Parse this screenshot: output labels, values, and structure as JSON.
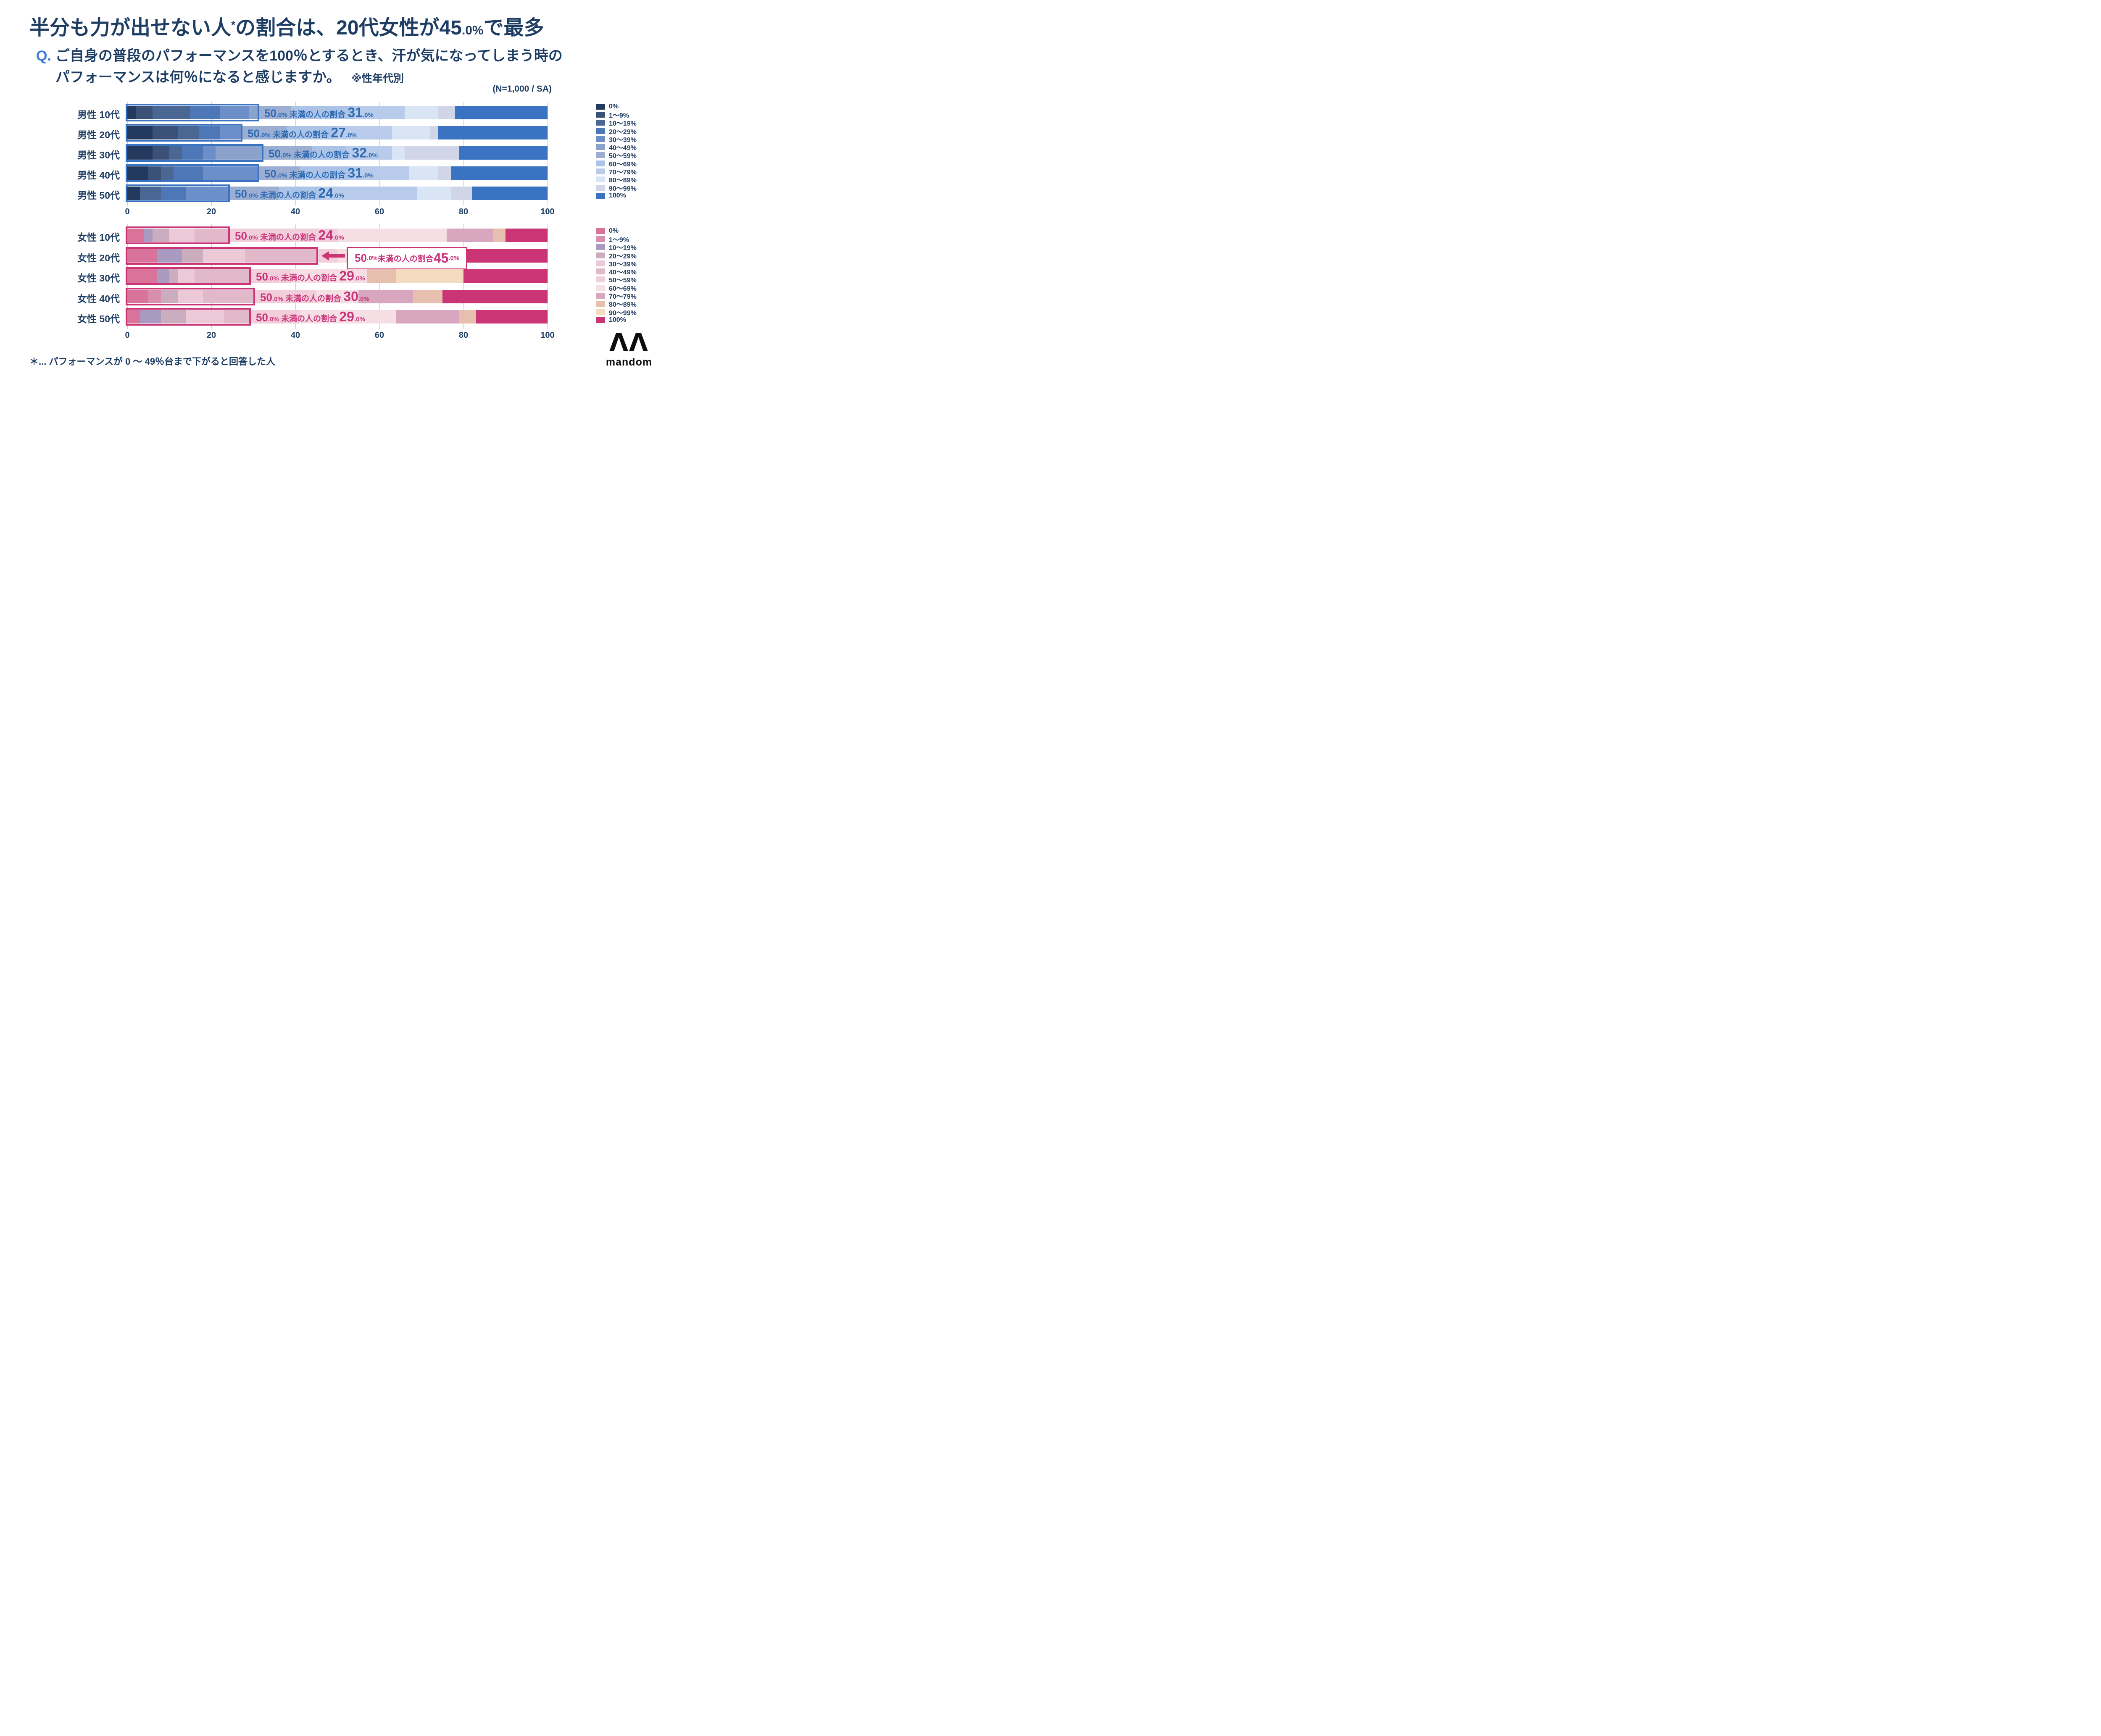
{
  "title": {
    "part1": "半分も力が出せない人",
    "asterisk": "*",
    "part2": "の割合は、20代女性が",
    "value": "45",
    "value_suffix": ".0%",
    "part3": "で最多"
  },
  "question": {
    "q": "Q.",
    "line1": "ご自身の普段のパフォーマンスを100％とするとき、汗が気になってしまう時の",
    "line2": "パフォーマンスは何％になると感じますか。",
    "note": "※性年代別"
  },
  "sample_note": "(N=1,000 / SA)",
  "footnote": "＊... パフォーマンスが 0 〜 49％台まで下がると回答した人",
  "logo": {
    "mark": "ΛΛ",
    "text": "mandom"
  },
  "legend_categories": [
    "0%",
    "1〜9%",
    "10〜19%",
    "20〜29%",
    "30〜39%",
    "40〜49%",
    "50〜59%",
    "60〜69%",
    "70〜79%",
    "80〜89%",
    "90〜99%",
    "100%"
  ],
  "bar_label": {
    "prefix_num": "50",
    "prefix_suffix": ".0%",
    "mid": " 未満の人の割合 ",
    "value_suffix": ".0%"
  },
  "charts": {
    "male": {
      "accent": "#3a73c1",
      "label_color": "#2e6bb4",
      "palette": [
        "#24395e",
        "#3b5177",
        "#4a6793",
        "#4d77b6",
        "#6c8ec9",
        "#8aa2cc",
        "#9cafd3",
        "#abc3e6",
        "#b8cbea",
        "#d9e4f4",
        "#d0d5e8",
        "#3a73c1"
      ]
    },
    "female": {
      "accent": "#cb3475",
      "label_color": "#c9357b",
      "palette": [
        "#d9739a",
        "#d88fae",
        "#a89ac0",
        "#cbadc0",
        "#ecc9d7",
        "#e2b8cb",
        "#f1ced9",
        "#f6dfe4",
        "#d8a6bf",
        "#e6bfae",
        "#f3dcc0",
        "#cb3475"
      ]
    }
  },
  "chart_data": [
    {
      "type": "bar",
      "orientation": "horizontal",
      "stacked": true,
      "group": "male",
      "title": "男性 性年代別 パフォーマンス低下の回答分布",
      "categories": [
        "男性 10代",
        "男性 20代",
        "男性 30代",
        "男性 40代",
        "男性 50代"
      ],
      "segment_labels": [
        "0%",
        "1〜9%",
        "10〜19%",
        "20〜29%",
        "30〜39%",
        "40〜49%",
        "50〜59%",
        "60〜69%",
        "70〜79%",
        "80〜89%",
        "90〜99%",
        "100%"
      ],
      "values": [
        [
          2,
          4,
          9,
          7,
          7,
          2,
          8,
          15,
          12,
          8,
          4,
          22
        ],
        [
          6,
          6,
          5,
          5,
          5,
          0,
          11,
          12,
          13,
          9,
          2,
          26
        ],
        [
          6,
          4,
          3,
          5,
          3,
          11,
          12,
          8,
          11,
          3,
          13,
          21
        ],
        [
          5,
          3,
          3,
          7,
          13,
          0,
          10,
          12,
          14,
          7,
          3,
          23
        ],
        [
          3,
          0,
          5,
          6,
          10,
          0,
          12,
          10,
          23,
          8,
          5,
          18
        ]
      ],
      "under50_share": [
        31,
        27,
        32,
        31,
        24
      ],
      "under50_labels": [
        "50.0% 未満の人の割合 31.0%",
        "50.0% 未満の人の割合 27.0%",
        "50.0% 未満の人の割合 32.0%",
        "50.0% 未満の人の割合 31.0%",
        "50.0% 未満の人の割合 24.0%"
      ],
      "xlim": [
        0,
        100
      ],
      "xticks": [
        0,
        20,
        40,
        60,
        80,
        100
      ],
      "grid": true,
      "legend_position": "right",
      "callout_row": -1
    },
    {
      "type": "bar",
      "orientation": "horizontal",
      "stacked": true,
      "group": "female",
      "title": "女性 性年代別 パフォーマンス低下の回答分布",
      "categories": [
        "女性 10代",
        "女性 20代",
        "女性 30代",
        "女性 40代",
        "女性 50代"
      ],
      "segment_labels": [
        "0%",
        "1〜9%",
        "10〜19%",
        "20〜29%",
        "30〜39%",
        "40〜49%",
        "50〜59%",
        "60〜69%",
        "70〜79%",
        "80〜89%",
        "90〜99%",
        "100%"
      ],
      "values": [
        [
          4,
          0,
          2,
          4,
          6,
          8,
          26,
          26,
          11,
          3,
          0,
          10
        ],
        [
          7,
          0,
          6,
          5,
          10,
          17,
          5,
          11,
          10,
          2,
          0,
          27
        ],
        [
          7,
          0,
          3,
          2,
          4,
          13,
          10,
          18,
          0,
          7,
          16,
          20
        ],
        [
          5,
          3,
          0,
          4,
          6,
          12,
          15,
          10,
          13,
          7,
          0,
          25
        ],
        [
          3,
          0,
          5,
          6,
          9,
          6,
          12,
          23,
          15,
          4,
          0,
          17
        ]
      ],
      "under50_share": [
        24,
        45,
        29,
        30,
        29
      ],
      "under50_labels": [
        "50.0% 未満の人の割合 24.0%",
        "50.0% 未満の人の割合 45.0%",
        "50.0% 未満の人の割合 29.0%",
        "50.0% 未満の人の割合 30.0%",
        "50.0% 未満の人の割合 29.0%"
      ],
      "xlim": [
        0,
        100
      ],
      "xticks": [
        0,
        20,
        40,
        60,
        80,
        100
      ],
      "grid": true,
      "legend_position": "right",
      "callout_row": 1
    }
  ]
}
